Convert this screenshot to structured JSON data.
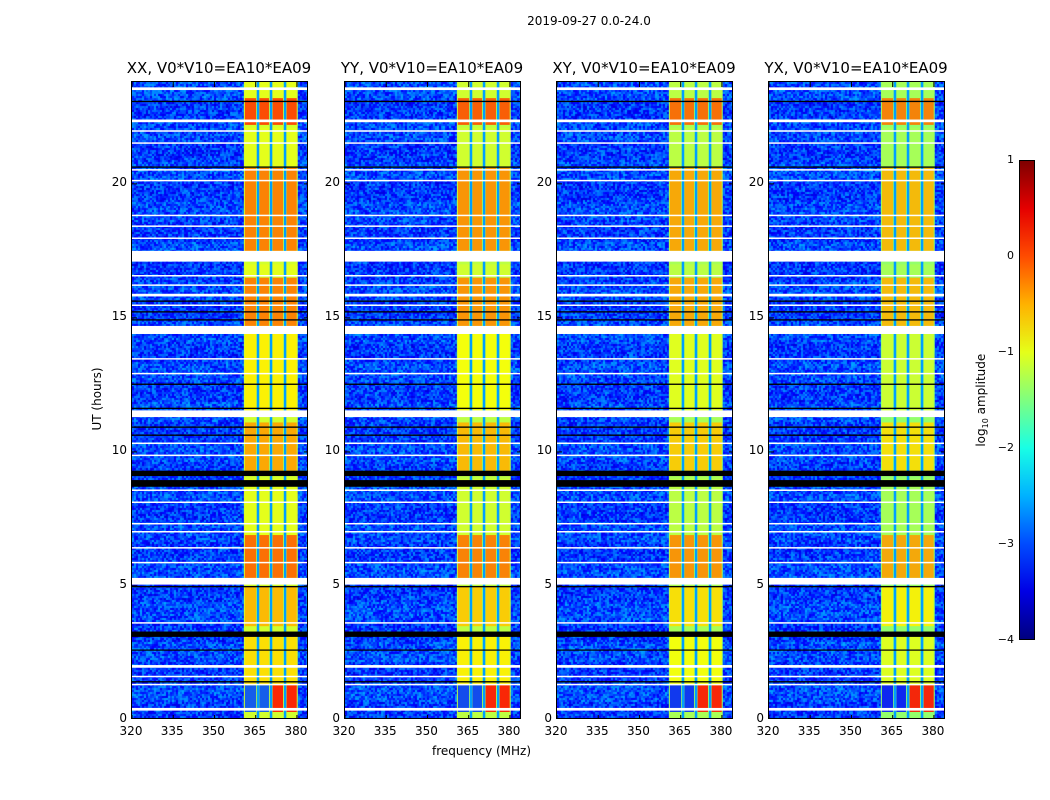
{
  "suptitle": "2019-09-27 0.0-24.0",
  "xlabel": "frequency (MHz)",
  "ylabel": "UT (hours)",
  "colorbar": {
    "label": "log",
    "label_sub": "10",
    "label_rest": " amplitude",
    "ticks": [
      "1",
      "0",
      "−1",
      "−2",
      "−3",
      "−4"
    ],
    "range": [
      -4,
      1
    ]
  },
  "chart_data": {
    "type": "heatmap",
    "colormap": "jet",
    "xlim": [
      320,
      384.4
    ],
    "ylim": [
      0,
      23.8
    ],
    "xticks": [
      "320",
      "335",
      "350",
      "365",
      "380"
    ],
    "xtick_values": [
      320,
      335,
      350,
      365,
      380
    ],
    "yticks": [
      "0",
      "5",
      "10",
      "15",
      "20"
    ],
    "ytick_values": [
      0,
      5,
      10,
      15,
      20
    ],
    "background_level": -3.1,
    "subbands": [
      [
        360.7,
        365.5
      ],
      [
        366.0,
        370.2
      ],
      [
        370.8,
        375.3
      ],
      [
        375.9,
        380.3
      ]
    ],
    "band_segments": [
      {
        "t": [
          0.3,
          1.3
        ],
        "level": -3.0,
        "last_two_level": 0.3
      },
      {
        "t": [
          1.3,
          3.3
        ],
        "level": -0.7
      },
      {
        "t": [
          3.5,
          5.0
        ],
        "level": -0.5
      },
      {
        "t": [
          5.3,
          6.9
        ],
        "level": -0.1
      },
      {
        "t": [
          6.9,
          9.0
        ],
        "level": -1.0
      },
      {
        "t": [
          9.3,
          11.1
        ],
        "level": -0.4
      },
      {
        "t": [
          11.5,
          14.4
        ],
        "level": -0.8
      },
      {
        "t": [
          14.7,
          16.5
        ],
        "level": -0.2
      },
      {
        "t": [
          16.6,
          17.0
        ],
        "level": -1.0
      },
      {
        "t": [
          17.5,
          20.6
        ],
        "level": -0.2
      },
      {
        "t": [
          20.6,
          22.1
        ],
        "level": -1.0
      },
      {
        "t": [
          22.2,
          23.2
        ],
        "level": 0.1
      },
      {
        "t": [
          23.2,
          23.8
        ],
        "level": -1.0
      }
    ],
    "flagged_rows_hours": [
      [
        0.35,
        0.45
      ],
      [
        1.3,
        1.35
      ],
      [
        1.6,
        1.65
      ],
      [
        1.95,
        2.05
      ],
      [
        3.6,
        3.65
      ],
      [
        5.05,
        5.3
      ],
      [
        5.85,
        5.9
      ],
      [
        6.4,
        6.45
      ],
      [
        7.0,
        7.05
      ],
      [
        7.3,
        7.35
      ],
      [
        8.1,
        8.15
      ],
      [
        8.55,
        8.6
      ],
      [
        9.85,
        9.9
      ],
      [
        10.3,
        10.35
      ],
      [
        11.3,
        11.55
      ],
      [
        12.9,
        12.95
      ],
      [
        13.45,
        13.5
      ],
      [
        14.4,
        14.7
      ],
      [
        15.45,
        15.5
      ],
      [
        15.8,
        15.9
      ],
      [
        16.2,
        16.25
      ],
      [
        16.55,
        16.6
      ],
      [
        17.1,
        17.5
      ],
      [
        17.95,
        18.0
      ],
      [
        18.4,
        18.45
      ],
      [
        18.8,
        18.85
      ],
      [
        20.1,
        20.15
      ],
      [
        20.5,
        20.55
      ],
      [
        21.5,
        21.55
      ],
      [
        21.95,
        22.0
      ],
      [
        22.3,
        22.4
      ],
      [
        23.5,
        23.6
      ]
    ],
    "dark_rows_hours": [
      [
        1.4,
        1.45
      ],
      [
        2.6,
        2.63
      ],
      [
        3.1,
        3.3
      ],
      [
        4.95,
        5.0
      ],
      [
        8.7,
        8.95
      ],
      [
        9.1,
        9.3
      ],
      [
        10.6,
        10.65
      ],
      [
        10.9,
        10.95
      ],
      [
        11.6,
        11.65
      ],
      [
        12.5,
        12.55
      ],
      [
        14.9,
        14.95
      ],
      [
        15.2,
        15.25
      ],
      [
        15.6,
        15.65
      ],
      [
        20.6,
        20.65
      ],
      [
        23.05,
        23.1
      ]
    ],
    "panels": [
      {
        "title": "XX, V0*V10=EA10*EA09",
        "offset": 0.0
      },
      {
        "title": "YY, V0*V10=EA10*EA09",
        "offset": -0.1
      },
      {
        "title": "XY, V0*V10=EA10*EA09",
        "offset": -0.2
      },
      {
        "title": "YX, V0*V10=EA10*EA09",
        "offset": -0.3
      }
    ]
  }
}
